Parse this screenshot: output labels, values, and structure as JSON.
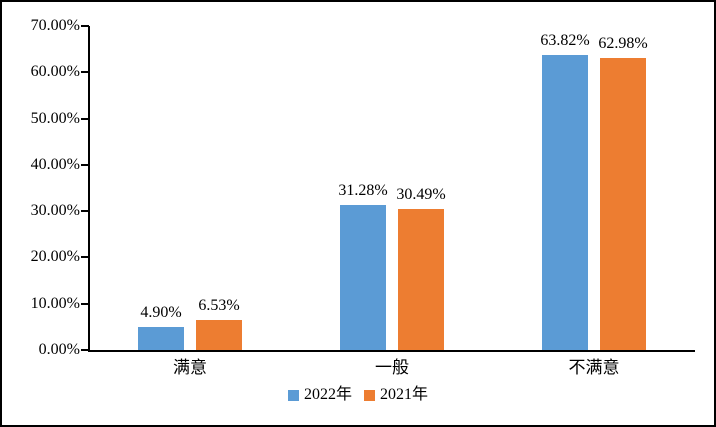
{
  "chart_data": {
    "type": "bar",
    "title": "",
    "xlabel": "",
    "ylabel": "",
    "categories": [
      "满意",
      "一般",
      "不满意"
    ],
    "series": [
      {
        "name": "2022年",
        "color": "#5B9BD5",
        "values": [
          4.9,
          31.28,
          63.82
        ],
        "labels": [
          "4.90%",
          "31.28%",
          "63.82%"
        ]
      },
      {
        "name": "2021年",
        "color": "#ED7D31",
        "values": [
          6.53,
          30.49,
          62.98
        ],
        "labels": [
          "6.53%",
          "30.49%",
          "62.98%"
        ]
      }
    ],
    "ylim": [
      0,
      70
    ],
    "y_tick_step": 10,
    "y_tick_labels": [
      "0.00%",
      "10.00%",
      "20.00%",
      "30.00%",
      "40.00%",
      "50.00%",
      "60.00%",
      "70.00%"
    ],
    "grid": false,
    "legend_position": "bottom",
    "axis_color": "#000000",
    "background_color": "#ffffff"
  }
}
